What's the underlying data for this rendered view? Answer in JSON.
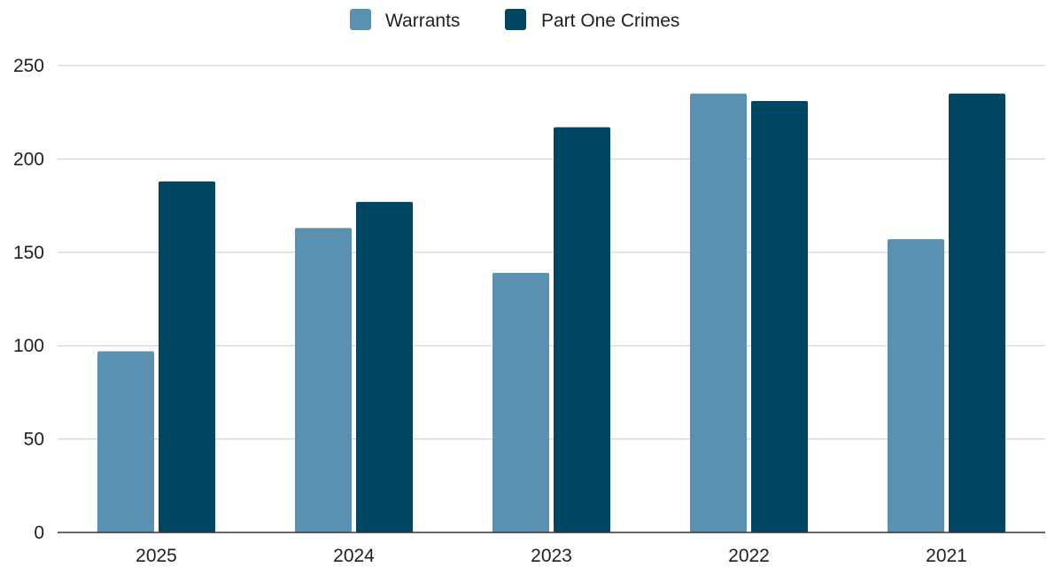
{
  "chart_data": {
    "type": "bar",
    "categories": [
      "2025",
      "2024",
      "2023",
      "2022",
      "2021"
    ],
    "series": [
      {
        "name": "Warrants",
        "color": "#5a91b0",
        "values": [
          97,
          163,
          139,
          235,
          157
        ]
      },
      {
        "name": "Part One Crimes",
        "color": "#004561",
        "values": [
          188,
          177,
          217,
          231,
          235
        ]
      }
    ],
    "ylim": [
      0,
      250
    ],
    "yticks": [
      0,
      50,
      100,
      150,
      200,
      250
    ],
    "grid": true,
    "legend_position": "top-center"
  }
}
